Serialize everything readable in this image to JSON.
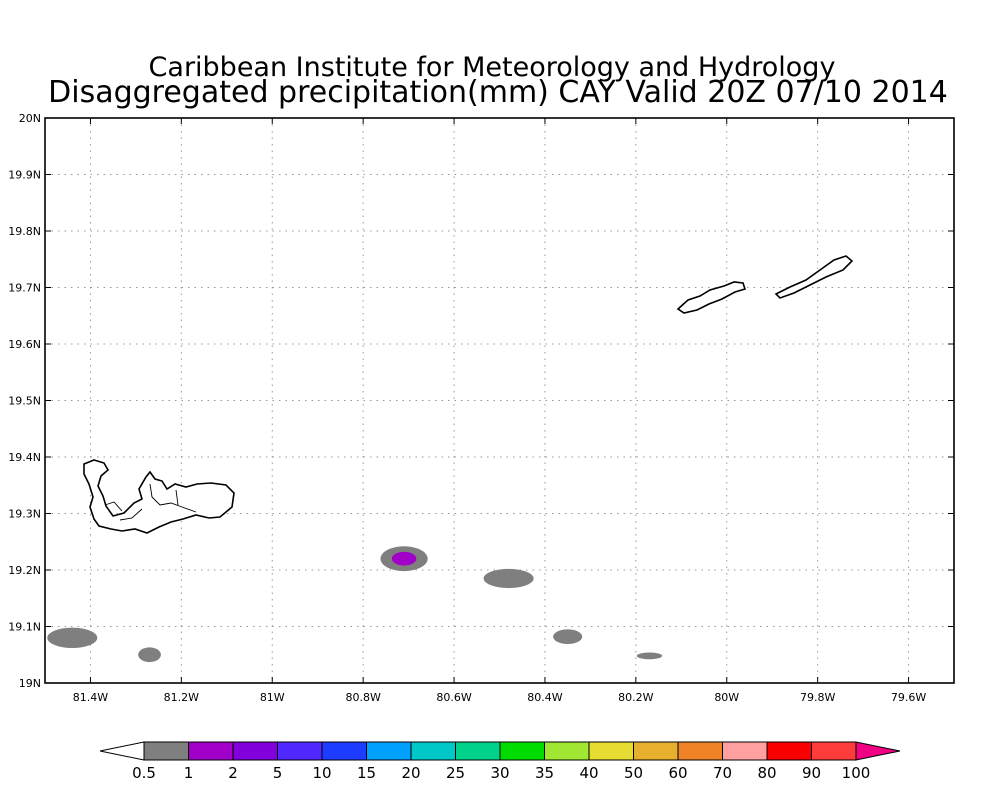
{
  "title_line1": "Caribbean Institute for Meteorology and Hydrology",
  "title_line2": "Disaggregated precipitation(mm) CAY Valid 20Z 07/10 2014",
  "map": {
    "lon_range": [
      -81.5,
      -79.5
    ],
    "lat_range": [
      19.0,
      20.0
    ],
    "grid": "dotted",
    "x_tick_labels": [
      "81.4W",
      "81.2W",
      "81W",
      "80.8W",
      "80.6W",
      "80.4W",
      "80.2W",
      "80W",
      "79.8W",
      "79.6W"
    ],
    "x_tick_values": [
      -81.4,
      -81.2,
      -81.0,
      -80.8,
      -80.6,
      -80.4,
      -80.2,
      -80.0,
      -79.8,
      -79.6
    ],
    "y_tick_labels": [
      "19N",
      "19.1N",
      "19.2N",
      "19.3N",
      "19.4N",
      "19.5N",
      "19.6N",
      "19.7N",
      "19.8N",
      "19.9N",
      "20N"
    ],
    "y_tick_values": [
      19.0,
      19.1,
      19.2,
      19.3,
      19.4,
      19.5,
      19.6,
      19.7,
      19.8,
      19.9,
      20.0
    ],
    "islands": [
      "Grand Cayman",
      "Little Cayman",
      "Cayman Brac"
    ],
    "precipitation_cells": [
      {
        "lon": -81.44,
        "lat": 19.08,
        "rlon": 0.055,
        "rlat": 0.018,
        "category": "0.5-1"
      },
      {
        "lon": -81.27,
        "lat": 19.05,
        "rlon": 0.025,
        "rlat": 0.013,
        "category": "0.5-1"
      },
      {
        "lon": -80.71,
        "lat": 19.22,
        "rlon": 0.052,
        "rlat": 0.022,
        "category": "0.5-1"
      },
      {
        "lon": -80.71,
        "lat": 19.22,
        "rlon": 0.027,
        "rlat": 0.012,
        "category": "1-2"
      },
      {
        "lon": -80.48,
        "lat": 19.185,
        "rlon": 0.055,
        "rlat": 0.017,
        "category": "0.5-1"
      },
      {
        "lon": -80.35,
        "lat": 19.082,
        "rlon": 0.032,
        "rlat": 0.013,
        "category": "0.5-1"
      },
      {
        "lon": -80.17,
        "lat": 19.048,
        "rlon": 0.028,
        "rlat": 0.006,
        "category": "0.5-1"
      }
    ]
  },
  "colorbar": {
    "labels": [
      "0.5",
      "1",
      "2",
      "5",
      "10",
      "15",
      "20",
      "25",
      "30",
      "35",
      "40",
      "50",
      "60",
      "70",
      "80",
      "90",
      "100"
    ],
    "colors": [
      "#ffffff",
      "#7f7f7f",
      "#a000c8",
      "#8200dc",
      "#5028ff",
      "#1e3cff",
      "#00a0ff",
      "#00c8c8",
      "#00d28c",
      "#00dc00",
      "#a0e632",
      "#e6dc32",
      "#e6af2d",
      "#f08228",
      "#ffa0a0",
      "#fa0000",
      "#ff3c3c",
      "#f00082"
    ]
  }
}
